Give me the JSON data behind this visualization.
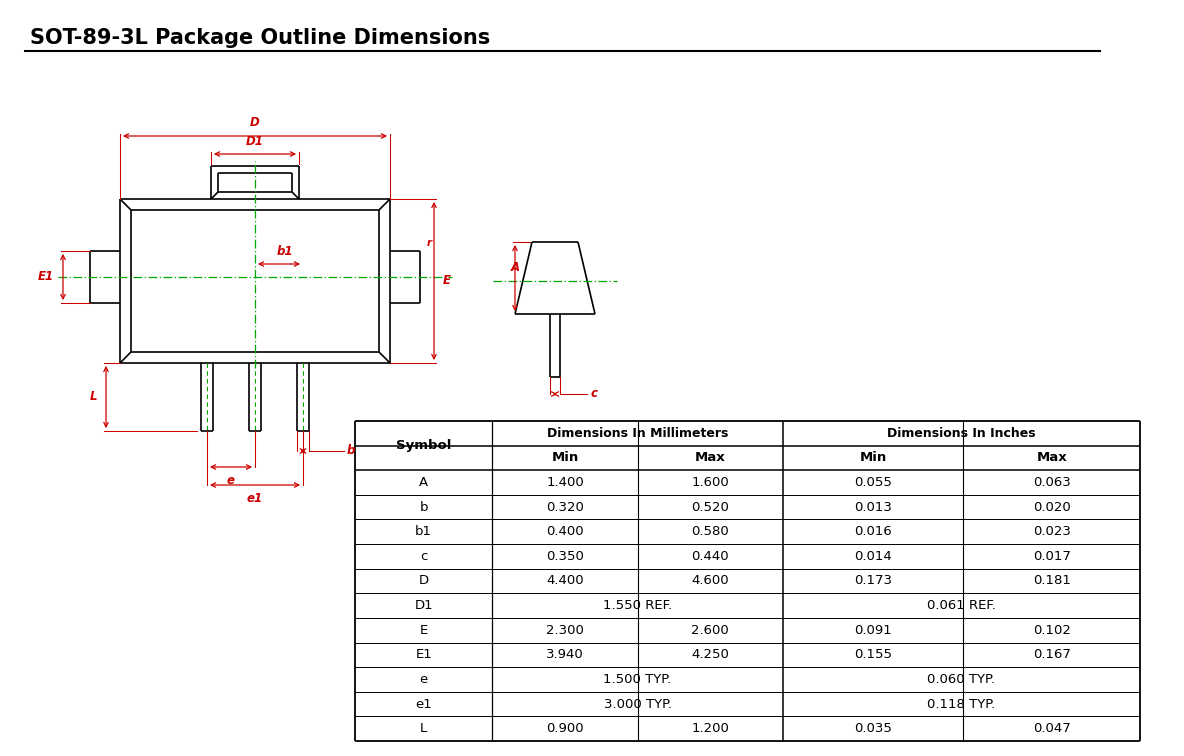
{
  "title": "SOT-89-3L Package Outline Dimensions",
  "background_color": "#ffffff",
  "red_color": "#cc0000",
  "green_color": "#00aa00",
  "black_color": "#000000",
  "table_data": {
    "rows": [
      [
        "A",
        "1.400",
        "1.600",
        "0.055",
        "0.063"
      ],
      [
        "b",
        "0.320",
        "0.520",
        "0.013",
        "0.020"
      ],
      [
        "b1",
        "0.400",
        "0.580",
        "0.016",
        "0.023"
      ],
      [
        "c",
        "0.350",
        "0.440",
        "0.014",
        "0.017"
      ],
      [
        "D",
        "4.400",
        "4.600",
        "0.173",
        "0.181"
      ],
      [
        "D1",
        "1.550 REF.",
        "",
        "0.061 REF.",
        ""
      ],
      [
        "E",
        "2.300",
        "2.600",
        "0.091",
        "0.102"
      ],
      [
        "E1",
        "3.940",
        "4.250",
        "0.155",
        "0.167"
      ],
      [
        "e",
        "1.500 TYP.",
        "",
        "0.060 TYP.",
        ""
      ],
      [
        "e1",
        "3.000 TYP.",
        "",
        "0.118 TYP.",
        ""
      ],
      [
        "L",
        "0.900",
        "1.200",
        "0.035",
        "0.047"
      ]
    ]
  }
}
